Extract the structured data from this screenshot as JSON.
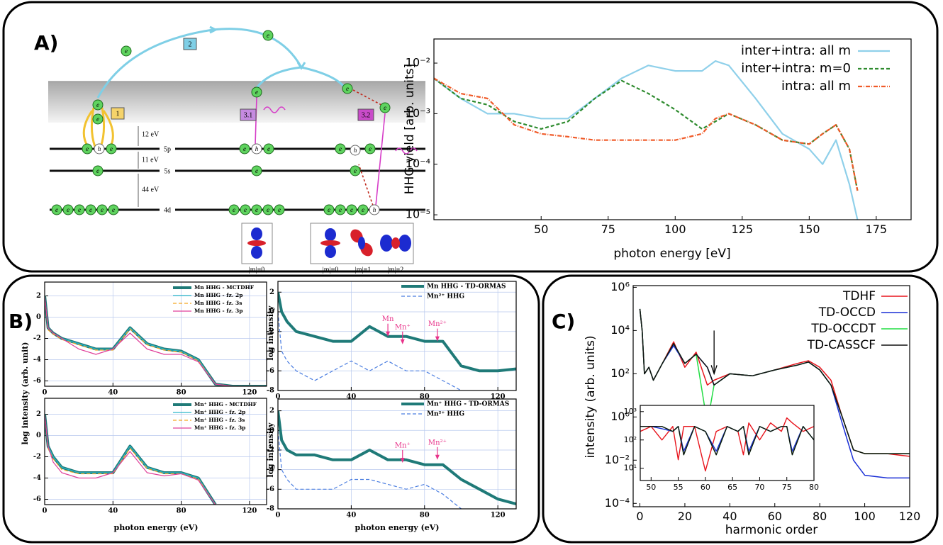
{
  "panel_labels": [
    "A)",
    "B)",
    "C)"
  ],
  "diagram": {
    "electron": "e",
    "hole": "h",
    "steps": [
      "1",
      "2",
      "3.1",
      "3.2"
    ],
    "gaps": [
      "12 eV",
      "11 eV",
      "44 eV"
    ],
    "levels": [
      "5p",
      "5s",
      "4d"
    ],
    "orbitals": [
      "|m|=0",
      "|m|=0",
      "|m|=1",
      "|m|=2"
    ]
  },
  "chart_data": [
    {
      "type": "line",
      "xlabel": "photon energy [eV]",
      "ylabel": "HHG yield [arb. units]",
      "ylog": true,
      "grid": false,
      "legend": "upper right",
      "x": [
        10,
        20,
        30,
        40,
        50,
        60,
        70,
        80,
        90,
        100,
        110,
        115,
        120,
        130,
        140,
        150,
        155,
        160,
        165,
        168
      ],
      "xlim": [
        10,
        188
      ],
      "xticks": [
        50,
        75,
        100,
        125,
        150,
        175
      ],
      "ylim": [
        8e-06,
        0.03
      ],
      "yticks": [
        {
          "value": 0.01,
          "label": "10⁻²"
        },
        {
          "value": 0.001,
          "label": "10⁻³"
        },
        {
          "value": 0.0001,
          "label": "10⁻⁴"
        },
        {
          "value": 1e-05,
          "label": "10⁻⁵"
        }
      ],
      "series": [
        {
          "name": "inter+intra: all m",
          "color": "#8fd0ea",
          "style": "solid",
          "values": [
            0.005,
            0.002,
            0.001,
            0.001,
            0.0008,
            0.0008,
            0.002,
            0.005,
            0.009,
            0.007,
            0.007,
            0.011,
            0.009,
            0.002,
            0.0004,
            0.0002,
            0.0001,
            0.0003,
            4e-05,
            8e-06
          ]
        },
        {
          "name": "inter+intra: m=0",
          "color": "#2e8b2e",
          "style": "dashed",
          "values": [
            0.005,
            0.002,
            0.0015,
            0.0007,
            0.0005,
            0.0007,
            0.002,
            0.0045,
            0.0025,
            0.0012,
            0.0005,
            0.0007,
            0.001,
            0.0006,
            0.0003,
            0.00025,
            0.0004,
            0.0006,
            0.0002,
            3e-05
          ]
        },
        {
          "name": "intra: all m",
          "color": "#f05a28",
          "style": "dashdot",
          "values": [
            0.005,
            0.0025,
            0.002,
            0.0006,
            0.0004,
            0.00035,
            0.0003,
            0.0003,
            0.0003,
            0.0003,
            0.0004,
            0.0008,
            0.001,
            0.0006,
            0.0003,
            0.00025,
            0.0004,
            0.0006,
            0.0002,
            3e-05
          ]
        }
      ]
    },
    {
      "type": "line",
      "ylabel": "log intensity (arb. unit)",
      "grid": true,
      "legend": "upper right",
      "x": [
        0,
        2,
        5,
        10,
        20,
        30,
        40,
        50,
        60,
        70,
        80,
        90,
        100,
        110,
        120,
        130
      ],
      "xlim": [
        0,
        130
      ],
      "xticks": [
        0,
        40,
        80,
        120
      ],
      "ylim": [
        -6.5,
        3.3
      ],
      "yticks": [
        2,
        0,
        -2,
        -4,
        -6
      ],
      "series": [
        {
          "name": "Mn HHG - MCTDHF",
          "color": "#1f7a78",
          "style": "thick",
          "values": [
            2,
            -1,
            -1.5,
            -2,
            -2.5,
            -3,
            -3,
            -1,
            -2.5,
            -3,
            -3.2,
            -4,
            -6.3,
            -6.5,
            -6.5,
            -6.5
          ]
        },
        {
          "name": "Mn HHG - fz. 2p",
          "color": "#2ab7c9",
          "style": "solid",
          "values": [
            2,
            -1,
            -1.5,
            -2,
            -2.5,
            -3,
            -3,
            -1,
            -2.5,
            -3,
            -3.2,
            -4,
            -6.3,
            -6.5,
            -6.5,
            -6.5
          ]
        },
        {
          "name": "Mn HHG - fz. 3s",
          "color": "#f5a623",
          "style": "dashed",
          "values": [
            2,
            -1.2,
            -1.6,
            -2.1,
            -2.6,
            -3.1,
            -3.1,
            -1.1,
            -2.6,
            -3.1,
            -3.3,
            -4.1,
            -6.3,
            -6.5,
            -6.5,
            -6.5
          ]
        },
        {
          "name": "Mn HHG - fz. 3p",
          "color": "#e0409a",
          "style": "solid",
          "values": [
            2,
            -1,
            -1.5,
            -2,
            -3,
            -3.5,
            -3,
            -1.5,
            -3,
            -3.5,
            -3.5,
            -4.2,
            -6.3,
            -6.5,
            -6.5,
            -6.5
          ]
        }
      ]
    },
    {
      "type": "line",
      "ylabel": "log intensity",
      "grid": true,
      "legend": "upper right",
      "annotation_color": "#e8338a",
      "x": [
        0,
        2,
        5,
        10,
        20,
        30,
        40,
        50,
        60,
        70,
        80,
        90,
        100,
        110,
        120,
        130
      ],
      "xlim": [
        0,
        130
      ],
      "xticks": [
        0,
        40,
        80,
        120
      ],
      "ylim": [
        -8,
        3.1
      ],
      "yticks": [
        2,
        0,
        -2,
        -4,
        -6,
        -8
      ],
      "series": [
        {
          "name": "Mn HHG - TD-ORMAS",
          "color": "#1f7a78",
          "style": "thick",
          "values": [
            2,
            0,
            -1,
            -2,
            -2.5,
            -3,
            -3,
            -1.5,
            -2.5,
            -2.5,
            -3,
            -3,
            -5.5,
            -6,
            -6,
            -5.8
          ]
        },
        {
          "name": "Mn²⁺ HHG",
          "color": "#4a7de0",
          "style": "dashed",
          "values": [
            0,
            -4,
            -5,
            -6,
            -7,
            -6,
            -5,
            -6,
            -5,
            -6,
            -6,
            -7,
            -8,
            null,
            null,
            null
          ]
        }
      ],
      "annotations": [
        {
          "text": "Mn",
          "x": 60,
          "y": -2.5
        },
        {
          "text": "Mn⁺",
          "x": 68,
          "y": -3.3
        },
        {
          "text": "Mn²⁺",
          "x": 87,
          "y": -3
        }
      ]
    },
    {
      "type": "line",
      "xlabel": "photon energy (eV)",
      "grid": true,
      "legend": "upper right",
      "x": [
        0,
        2,
        5,
        10,
        20,
        30,
        40,
        50,
        60,
        70,
        80,
        90,
        100,
        110,
        120,
        130
      ],
      "xlim": [
        0,
        130
      ],
      "xticks": [
        0,
        40,
        80,
        120
      ],
      "ylim": [
        -6.5,
        3.5
      ],
      "yticks": [
        2,
        0,
        -2,
        -4,
        -6
      ],
      "series": [
        {
          "name": "Mn⁺ HHG - MCTDHF",
          "color": "#1f7a78",
          "style": "thick",
          "values": [
            2,
            -1,
            -2,
            -3,
            -3.5,
            -3.5,
            -3.5,
            -1,
            -3,
            -3.5,
            -3.5,
            -4,
            -6.5,
            null,
            null,
            null
          ]
        },
        {
          "name": "Mn⁺ HHG - fz. 2p",
          "color": "#2ab7c9",
          "style": "solid",
          "values": [
            2,
            -1,
            -2,
            -3,
            -3.5,
            -3.5,
            -3.5,
            -1,
            -3,
            -3.5,
            -3.5,
            -4,
            -6.5,
            null,
            null,
            null
          ]
        },
        {
          "name": "Mn⁺ HHG - fz. 3s",
          "color": "#f5a623",
          "style": "dashed",
          "values": [
            2,
            -1.2,
            -2.2,
            -3.2,
            -3.6,
            -3.6,
            -3.6,
            -1.2,
            -3.1,
            -3.6,
            -3.6,
            -4.1,
            -6.5,
            null,
            null,
            null
          ]
        },
        {
          "name": "Mn⁺ HHG - fz. 3p",
          "color": "#e0409a",
          "style": "solid",
          "values": [
            2,
            -1,
            -2.5,
            -3.5,
            -4,
            -4,
            -3.5,
            -1.5,
            -3.5,
            -3.8,
            -3.6,
            -4.2,
            -6.5,
            null,
            null,
            null
          ]
        }
      ]
    },
    {
      "type": "line",
      "xlabel": "photon energy (eV)",
      "ylabel": "log intensity",
      "grid": true,
      "legend": "upper right",
      "annotation_color": "#e8338a",
      "x": [
        0,
        2,
        5,
        10,
        20,
        30,
        40,
        50,
        60,
        70,
        80,
        90,
        100,
        110,
        120,
        130
      ],
      "xlim": [
        0,
        130
      ],
      "xticks": [
        0,
        40,
        80,
        120
      ],
      "ylim": [
        -8,
        3.2
      ],
      "yticks": [
        2,
        0,
        -2,
        -4,
        -6,
        -8
      ],
      "series": [
        {
          "name": "Mn⁺ HHG - TD-ORMAS",
          "color": "#1f7a78",
          "style": "thick",
          "values": [
            2,
            -1,
            -2,
            -2.5,
            -2.5,
            -3,
            -3,
            -2,
            -3,
            -3,
            -3.5,
            -3.5,
            -5,
            -6,
            -7,
            -7.5
          ]
        },
        {
          "name": "Mn²⁺ HHG",
          "color": "#4a7de0",
          "style": "dashed",
          "values": [
            0,
            -4,
            -5,
            -6,
            -6,
            -6,
            -5,
            -5,
            -5.5,
            -6,
            -5.5,
            -6.5,
            -8,
            null,
            null,
            null
          ]
        }
      ],
      "annotations": [
        {
          "text": "Mn⁺",
          "x": 68,
          "y": -3.3
        },
        {
          "text": "Mn²⁺",
          "x": 87,
          "y": -3
        }
      ]
    },
    {
      "type": "line",
      "xlabel": "harmonic order",
      "ylabel": "intensity (arb. units)",
      "ylog": true,
      "grid": false,
      "legend": "upper right",
      "x": [
        0,
        1,
        2,
        4,
        6,
        10,
        15,
        20,
        25,
        30,
        33,
        40,
        50,
        60,
        70,
        75,
        80,
        85,
        90,
        95,
        100,
        110,
        120
      ],
      "xlim": [
        -3,
        120
      ],
      "xticks": [
        0,
        20,
        40,
        60,
        80,
        100,
        120
      ],
      "ylim": [
        7e-05,
        1200000
      ],
      "yticks": [
        {
          "value": 1000000,
          "label": "10⁶"
        },
        {
          "value": 10000,
          "label": "10⁴"
        },
        {
          "value": 100,
          "label": "10²"
        },
        {
          "value": 1,
          "label": "10⁰"
        },
        {
          "value": 0.01,
          "label": "10⁻²"
        },
        {
          "value": 0.0001,
          "label": "10⁻⁴"
        }
      ],
      "series": [
        {
          "name": "TDHF",
          "color": "#e8141c",
          "style": "solid",
          "values": [
            100000,
            10000,
            100,
            200,
            50,
            300,
            3000,
            200,
            1000,
            30,
            50,
            100,
            80,
            150,
            300,
            400,
            200,
            50,
            1,
            0.03,
            0.02,
            0.02,
            0.015
          ]
        },
        {
          "name": "TD-OCCD",
          "color": "#1a2fd6",
          "style": "solid",
          "values": [
            100000,
            10000,
            100,
            200,
            50,
            300,
            2000,
            300,
            800,
            200,
            30,
            100,
            80,
            150,
            250,
            350,
            150,
            30,
            0.5,
            0.01,
            0.002,
            0.0015,
            0.0015
          ]
        },
        {
          "name": "TD-OCCDT",
          "color": "#22dd44",
          "style": "solid",
          "values": [
            100000,
            10000,
            100,
            200,
            50,
            300,
            2500,
            300,
            800,
            0.5,
            30,
            100,
            80,
            150,
            250,
            350,
            150,
            30,
            1,
            0.03,
            0.02,
            0.02,
            0.02
          ]
        },
        {
          "name": "TD-CASSCF",
          "color": "#111111",
          "style": "solid",
          "values": [
            100000,
            10000,
            100,
            200,
            50,
            300,
            2500,
            300,
            800,
            200,
            30,
            100,
            80,
            150,
            250,
            350,
            150,
            30,
            1,
            0.03,
            0.02,
            0.02,
            0.02
          ]
        }
      ],
      "arrows": [
        {
          "x": 33,
          "from": 10000,
          "to": 100
        }
      ]
    },
    {
      "type": "line",
      "ylog": true,
      "grid": false,
      "x": [
        48,
        50,
        52,
        54,
        55,
        56,
        58,
        60,
        62,
        64,
        66,
        67,
        68,
        70,
        72,
        74,
        75,
        76,
        78,
        80
      ],
      "xlim": [
        48,
        80
      ],
      "xticks": [
        50,
        55,
        60,
        65,
        70,
        75,
        80
      ],
      "ylim": [
        3.7,
        1660
      ],
      "yticks": [
        {
          "value": 1000,
          "label": "10³"
        },
        {
          "value": 100,
          "label": "10²"
        },
        {
          "value": 10,
          "label": "10¹"
        }
      ],
      "series": [
        {
          "color": "#e8141c",
          "style": "solid",
          "values": [
            200,
            300,
            100,
            300,
            20,
            300,
            300,
            8,
            200,
            300,
            200,
            30,
            400,
            100,
            400,
            200,
            600,
            400,
            200,
            300
          ]
        },
        {
          "color": "#1a2fd6",
          "style": "solid",
          "values": [
            300,
            300,
            250,
            200,
            300,
            40,
            300,
            200,
            40,
            300,
            200,
            300,
            40,
            300,
            200,
            300,
            300,
            40,
            300,
            100
          ]
        },
        {
          "color": "#22dd44",
          "style": "solid",
          "values": [
            300,
            300,
            300,
            200,
            300,
            30,
            300,
            200,
            30,
            300,
            200,
            300,
            30,
            300,
            200,
            300,
            300,
            30,
            300,
            100
          ]
        },
        {
          "color": "#111111",
          "style": "solid",
          "values": [
            300,
            300,
            300,
            200,
            300,
            30,
            300,
            200,
            30,
            300,
            200,
            300,
            30,
            300,
            200,
            300,
            300,
            30,
            300,
            100
          ]
        }
      ]
    }
  ]
}
